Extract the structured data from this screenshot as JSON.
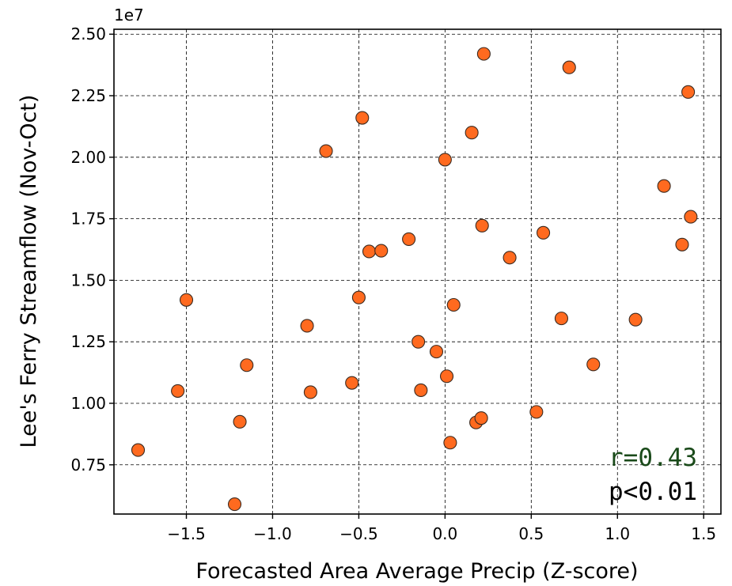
{
  "chart_data": {
    "type": "scatter",
    "xlabel": "Forecasted Area Average Precip (Z-score)",
    "ylabel": "Lee's Ferry Streamflow (Nov-Oct)",
    "offset_label": "1e7",
    "xlim": [
      -1.92,
      1.6
    ],
    "ylim": [
      0.55,
      2.52
    ],
    "xticks": [
      -1.5,
      -1.0,
      -0.5,
      0.0,
      0.5,
      1.0,
      1.5
    ],
    "xtick_labels": [
      "−1.5",
      "−1.0",
      "−0.5",
      "0.0",
      "0.5",
      "1.0",
      "1.5"
    ],
    "yticks": [
      0.75,
      1.0,
      1.25,
      1.5,
      1.75,
      2.0,
      2.25,
      2.5
    ],
    "ytick_labels": [
      "0.75",
      "1.00",
      "1.25",
      "1.50",
      "1.75",
      "2.00",
      "2.25",
      "2.50"
    ],
    "grid": true,
    "marker_color": "#ff6a1f",
    "marker_edge": "#3a2a20",
    "annotations": [
      {
        "text": "r=0.43",
        "color": "#1a4a1a",
        "position": "bottom-right"
      },
      {
        "text": "p<0.01",
        "color": "#000000",
        "position": "bottom-right"
      }
    ],
    "points": [
      {
        "x": -1.78,
        "y": 0.81
      },
      {
        "x": -1.55,
        "y": 1.05
      },
      {
        "x": -1.5,
        "y": 1.42
      },
      {
        "x": -1.22,
        "y": 0.59
      },
      {
        "x": -1.19,
        "y": 0.925
      },
      {
        "x": -1.15,
        "y": 1.155
      },
      {
        "x": -0.8,
        "y": 1.315
      },
      {
        "x": -0.78,
        "y": 1.045
      },
      {
        "x": -0.69,
        "y": 2.025
      },
      {
        "x": -0.54,
        "y": 1.083
      },
      {
        "x": -0.5,
        "y": 1.43
      },
      {
        "x": -0.48,
        "y": 2.16
      },
      {
        "x": -0.44,
        "y": 1.617
      },
      {
        "x": -0.37,
        "y": 1.62
      },
      {
        "x": -0.21,
        "y": 1.667
      },
      {
        "x": -0.155,
        "y": 1.25
      },
      {
        "x": -0.14,
        "y": 1.053
      },
      {
        "x": -0.05,
        "y": 1.21
      },
      {
        "x": 0.0,
        "y": 1.99
      },
      {
        "x": 0.01,
        "y": 1.11
      },
      {
        "x": 0.03,
        "y": 0.84
      },
      {
        "x": 0.05,
        "y": 1.4
      },
      {
        "x": 0.155,
        "y": 2.1
      },
      {
        "x": 0.18,
        "y": 0.922
      },
      {
        "x": 0.21,
        "y": 0.94
      },
      {
        "x": 0.215,
        "y": 1.722
      },
      {
        "x": 0.225,
        "y": 2.42
      },
      {
        "x": 0.375,
        "y": 1.592
      },
      {
        "x": 0.53,
        "y": 0.965
      },
      {
        "x": 0.57,
        "y": 1.693
      },
      {
        "x": 0.675,
        "y": 1.345
      },
      {
        "x": 0.72,
        "y": 2.365
      },
      {
        "x": 0.86,
        "y": 1.158
      },
      {
        "x": 1.105,
        "y": 1.34
      },
      {
        "x": 1.27,
        "y": 1.883
      },
      {
        "x": 1.375,
        "y": 1.645
      },
      {
        "x": 1.41,
        "y": 2.265
      },
      {
        "x": 1.425,
        "y": 1.758
      }
    ]
  }
}
